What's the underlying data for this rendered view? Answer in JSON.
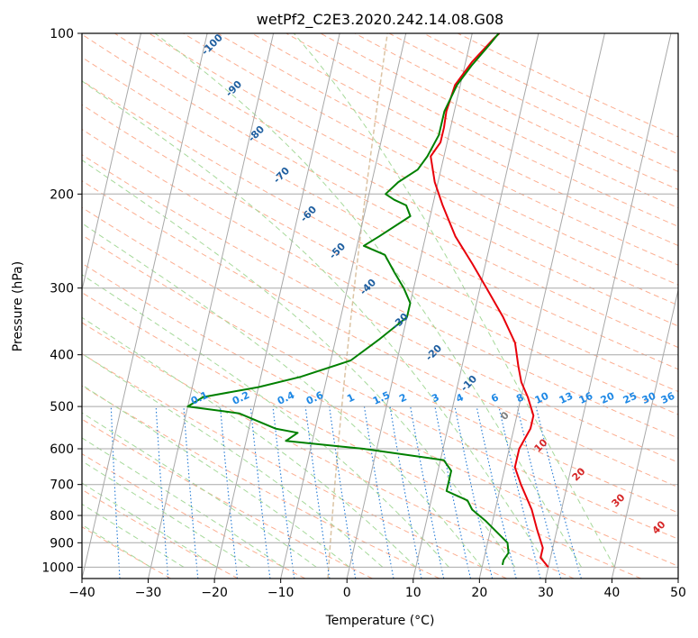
{
  "chart_data": {
    "type": "line",
    "title": "wetPf2_C2E3.2020.242.14.08.G08",
    "xlabel": "Temperature (°C)",
    "ylabel": "Pressure (hPa)",
    "xlim": [
      -40,
      50
    ],
    "ylim": [
      1050,
      100
    ],
    "y_scale": "log",
    "grid": true,
    "x_ticks": [
      -40,
      -30,
      -20,
      -10,
      0,
      10,
      20,
      30,
      40,
      50
    ],
    "y_ticks": [
      1000,
      900,
      800,
      700,
      600,
      500,
      400,
      300,
      200,
      100
    ],
    "series": [
      {
        "color": "#e8000b",
        "points": [
          [
            30,
            1000
          ],
          [
            28.5,
            960
          ],
          [
            28.5,
            920
          ],
          [
            27,
            850
          ],
          [
            25.5,
            780
          ],
          [
            23,
            700
          ],
          [
            21.5,
            650
          ],
          [
            21.5,
            600
          ],
          [
            22.5,
            550
          ],
          [
            22.5,
            520
          ],
          [
            21,
            480
          ],
          [
            19.5,
            450
          ],
          [
            18.5,
            420
          ],
          [
            17.2,
            380
          ],
          [
            14.5,
            340
          ],
          [
            11,
            300
          ],
          [
            8,
            270
          ],
          [
            4.5,
            240
          ],
          [
            1.5,
            210
          ],
          [
            -0.5,
            190
          ],
          [
            -2,
            170
          ],
          [
            -1,
            160
          ],
          [
            -1,
            150
          ],
          [
            -1.2,
            140
          ],
          [
            -0.8,
            125
          ],
          [
            1,
            113
          ],
          [
            3.5,
            102
          ],
          [
            4.1,
            100
          ]
        ]
      },
      {
        "color": "#008000",
        "points": [
          [
            23,
            990
          ],
          [
            23,
            970
          ],
          [
            23.5,
            940
          ],
          [
            23,
            900
          ],
          [
            19,
            820
          ],
          [
            16.5,
            780
          ],
          [
            15.5,
            750
          ],
          [
            12,
            720
          ],
          [
            12,
            700
          ],
          [
            12,
            660
          ],
          [
            10.5,
            630
          ],
          [
            -2,
            600
          ],
          [
            -14,
            580
          ],
          [
            -12.5,
            560
          ],
          [
            -16,
            550
          ],
          [
            -22,
            515
          ],
          [
            -30,
            500
          ],
          [
            -28,
            480
          ],
          [
            -20,
            460
          ],
          [
            -14,
            440
          ],
          [
            -7,
            410
          ],
          [
            -3.5,
            375
          ],
          [
            0,
            340
          ],
          [
            0,
            320
          ],
          [
            -1.5,
            300
          ],
          [
            -3.5,
            280
          ],
          [
            -5.5,
            260
          ],
          [
            -9,
            250
          ],
          [
            -7,
            240
          ],
          [
            -3,
            220
          ],
          [
            -4,
            210
          ],
          [
            -6,
            205
          ],
          [
            -7.5,
            200
          ],
          [
            -6,
            190
          ],
          [
            -3.5,
            180
          ],
          [
            -2.5,
            170
          ],
          [
            -1.5,
            155
          ],
          [
            -1.5,
            140
          ],
          [
            -0.5,
            125
          ],
          [
            1,
            115
          ],
          [
            3,
            105
          ],
          [
            4,
            100
          ]
        ]
      }
    ],
    "annotations": {
      "dry_adiabat_labels": [
        "-100",
        "-90",
        "-80",
        "-70",
        "-60",
        "-50",
        "-40",
        "-30",
        "-20",
        "-10",
        "0",
        "10",
        "20",
        "30",
        "40"
      ],
      "mixing_ratio_labels": [
        "0.1",
        "0.2",
        "0.4",
        "0.6",
        "1",
        "1.5",
        "2",
        "3",
        "4",
        "6",
        "8",
        "10",
        "13",
        "16",
        "20",
        "25",
        "30",
        "36"
      ]
    }
  }
}
